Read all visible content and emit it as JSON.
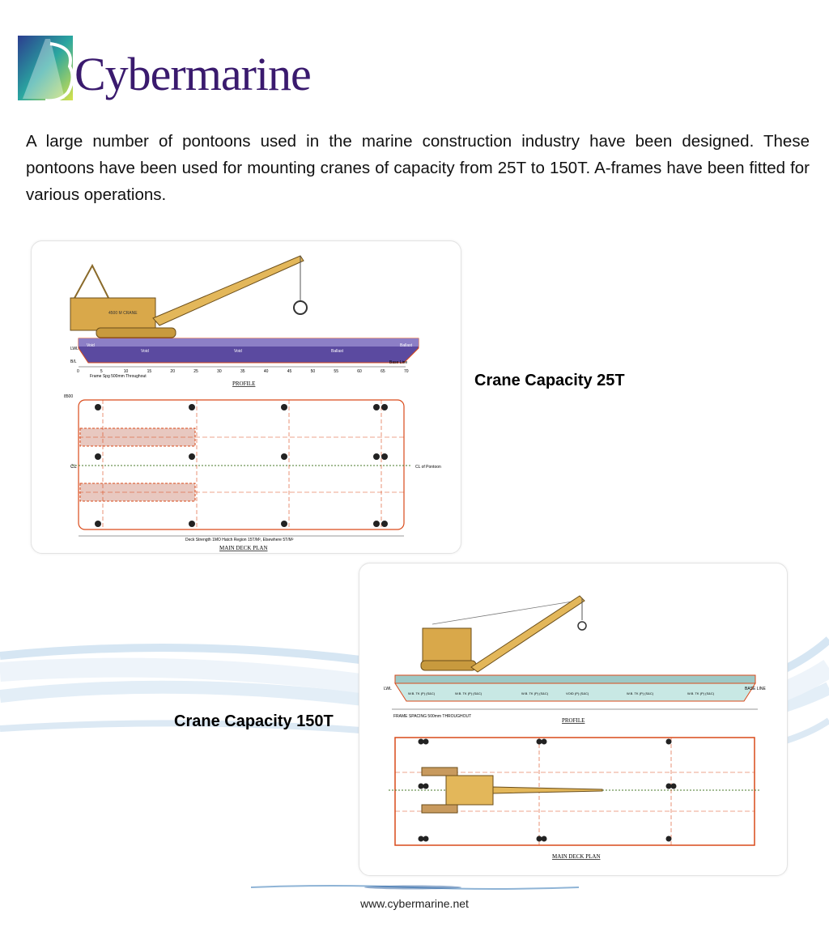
{
  "brand": {
    "name": "Cybermarine",
    "colors": {
      "primary": "#3a1a6e",
      "accent_teal": "#2aa6a0",
      "accent_blue": "#2b3d8f",
      "accent_yellow": "#d6e24a"
    }
  },
  "intro": "A large number of pontoons used in the marine construction industry have been designed. These pontoons have been used for mounting cranes of capacity from 25T to 150T. A-frames have been fitted for various operations.",
  "drawing_25t": {
    "caption": "Crane Capacity 25T",
    "crane_label": "4500 M CRANE",
    "labels": [
      "Void",
      "Void",
      "Void",
      "Ballast",
      "Ballast"
    ],
    "lwl": "LWL",
    "bl": "B/L",
    "base_line": "Base Line",
    "frame_ticks": [
      "0",
      "5",
      "10",
      "15",
      "20",
      "25",
      "30",
      "35",
      "40",
      "45",
      "50",
      "55",
      "60",
      "65",
      "70"
    ],
    "frame_spacing": "Frame Spg 500mm Throughout",
    "profile_title": "PROFILE",
    "width_dim": "8500",
    "cl": "CL",
    "cl_of_pontoon": "CL of Pontoon",
    "deck_strength": "Deck Strength 1MO Hatch Region 15T/M², Elsewhere 5T/M²",
    "main_deck_title": "MAIN DECK PLAN"
  },
  "drawing_150t": {
    "caption": "Crane Capacity 150T",
    "profile_title": "PROFILE",
    "frame_spacing": "FRAME SPACING 500mm THROUGHOUT",
    "main_deck_title": "MAIN DECK PLAN",
    "lwl": "LWL",
    "base_line": "BASE LINE",
    "tank_labels": [
      "W.B. TK (P) (S&C)",
      "W.B. TK (P) (S&C)",
      "W.B. TK (P) (S&C)",
      "VOID (P) (S&C)",
      "W.B. TK (P) (S&C)",
      "W.B. TK (P) (S&C)"
    ]
  },
  "footer": "www.cybermarine.net"
}
